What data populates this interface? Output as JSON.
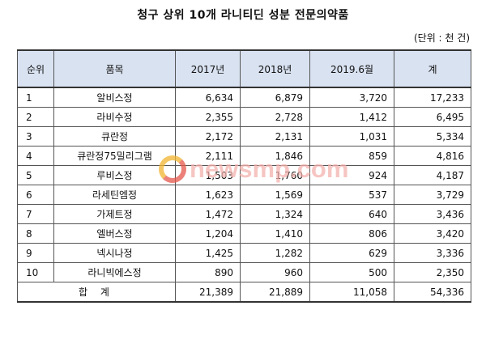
{
  "title": "청구 상위 10개 라니티딘 성분 전문의약품",
  "unit": "(단위 : 천 건)",
  "columns": [
    "순위",
    "품목",
    "2017년",
    "2018년",
    "2019.6월",
    "계"
  ],
  "rows": [
    {
      "rank": "1",
      "product": "알비스정",
      "y2017": "6,634",
      "y2018": "6,879",
      "y2019": "3,720",
      "total": "17,233"
    },
    {
      "rank": "2",
      "product": "라비수정",
      "y2017": "2,355",
      "y2018": "2,728",
      "y2019": "1,412",
      "total": "6,495"
    },
    {
      "rank": "3",
      "product": "큐란정",
      "y2017": "2,172",
      "y2018": "2,131",
      "y2019": "1,031",
      "total": "5,334"
    },
    {
      "rank": "4",
      "product": "큐란정75밀리그램",
      "y2017": "2,111",
      "y2018": "1,846",
      "y2019": "859",
      "total": "4,816"
    },
    {
      "rank": "5",
      "product": "루비스정",
      "y2017": "1,503",
      "y2018": "1,760",
      "y2019": "924",
      "total": "4,187"
    },
    {
      "rank": "6",
      "product": "라세틴엠정",
      "y2017": "1,623",
      "y2018": "1,569",
      "y2019": "537",
      "total": "3,729"
    },
    {
      "rank": "7",
      "product": "가제트정",
      "y2017": "1,472",
      "y2018": "1,324",
      "y2019": "640",
      "total": "3,436"
    },
    {
      "rank": "8",
      "product": "엘버스정",
      "y2017": "1,204",
      "y2018": "1,410",
      "y2019": "806",
      "total": "3,420"
    },
    {
      "rank": "9",
      "product": "넥시나정",
      "y2017": "1,425",
      "y2018": "1,282",
      "y2019": "629",
      "total": "3,336"
    },
    {
      "rank": "10",
      "product": "라니빅에스정",
      "y2017": "890",
      "y2018": "960",
      "y2019": "500",
      "total": "2,350"
    }
  ],
  "totals": {
    "label": "합 계",
    "y2017": "21,389",
    "y2018": "21,889",
    "y2019": "11,058",
    "total": "54,336"
  },
  "watermark": {
    "text": "newsmp.com",
    "icon": "newsmp-logo-icon"
  },
  "colors": {
    "header_bg": "#d9e2f1",
    "watermark_text": "#f3b2ae",
    "logo_orange": "#f2b530",
    "logo_red": "#e5584b"
  }
}
